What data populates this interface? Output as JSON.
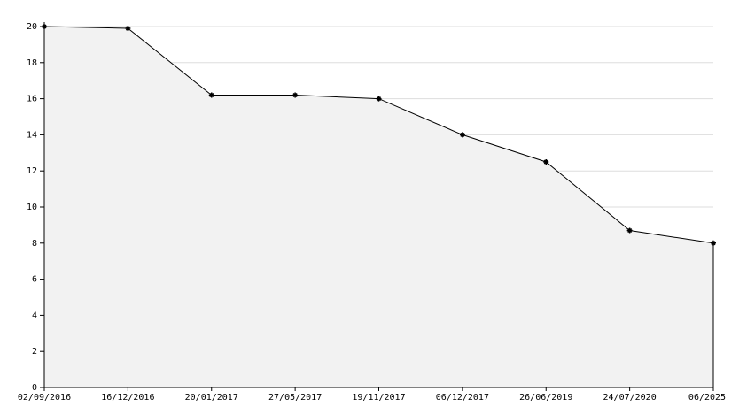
{
  "chart_data": {
    "type": "area",
    "categories": [
      "02/09/2016",
      "16/12/2016",
      "20/01/2017",
      "27/05/2017",
      "19/11/2017",
      "06/12/2017",
      "26/06/2019",
      "24/07/2020",
      "06/2025"
    ],
    "values": [
      20,
      19.9,
      16.2,
      16.2,
      16,
      14,
      12.5,
      8.7,
      8
    ],
    "color": "#000000",
    "fill": "#f2f2f2",
    "ylim": [
      0,
      20
    ],
    "yticks": [
      0,
      2,
      4,
      6,
      8,
      10,
      12,
      14,
      16,
      18,
      20
    ],
    "grid": true
  }
}
